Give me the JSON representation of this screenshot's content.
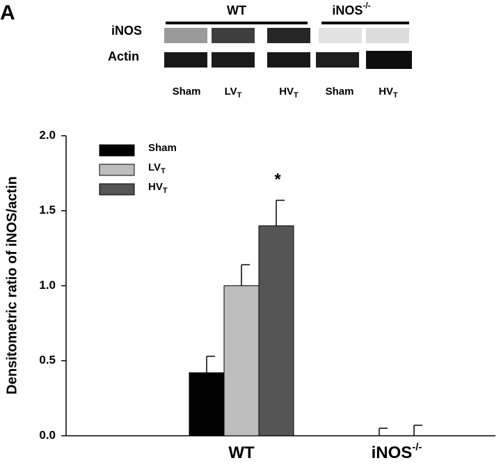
{
  "blot": {
    "panel_label": "A",
    "groups": [
      {
        "text": "WT"
      },
      {
        "text": "iNOS",
        "sup": "-/-"
      }
    ],
    "rows": [
      "iNOS",
      "Actin"
    ],
    "lanes": [
      {
        "text": "Sham"
      },
      {
        "text": "LV",
        "sub": "T"
      },
      {
        "text": "HV",
        "sub": "T"
      },
      {
        "text": "Sham"
      },
      {
        "text": "HV",
        "sub": "T"
      }
    ]
  },
  "chart_data": {
    "type": "bar",
    "y_label": "Densitometric ratio of iNOS/actin",
    "categories": [
      "WT",
      "iNOS"
    ],
    "category_superscripts": [
      null,
      "-/-"
    ],
    "series": [
      {
        "name": "Sham",
        "color": "#000000",
        "values": [
          0.42,
          0
        ],
        "errors": [
          0.11,
          0.05
        ]
      },
      {
        "name": "LV",
        "name_sub": "T",
        "color": "#bdbdbd",
        "values": [
          1.0,
          null
        ],
        "errors": [
          0.14,
          null
        ]
      },
      {
        "name": "HV",
        "name_sub": "T",
        "color": "#555555",
        "values": [
          1.4,
          0
        ],
        "errors": [
          0.17,
          0.07
        ]
      }
    ],
    "annotations": [
      {
        "text": "*"
      }
    ],
    "ylim": [
      0,
      2
    ],
    "yticks": [
      {
        "value": 0,
        "label": "0.0"
      },
      {
        "value": 0.5,
        "label": "0.5"
      },
      {
        "value": 1,
        "label": "1.0"
      },
      {
        "value": 1.5,
        "label": "1.5"
      },
      {
        "value": 2,
        "label": "2.0"
      }
    ]
  }
}
